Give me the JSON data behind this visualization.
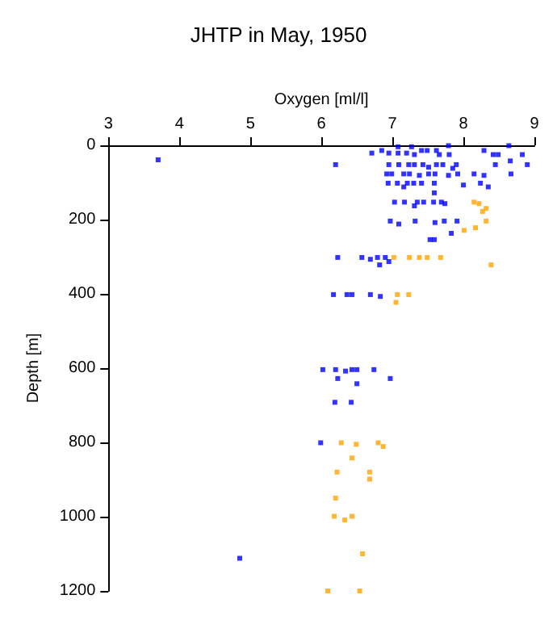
{
  "chart_data": {
    "type": "scatter",
    "title": "JHTP in May, 1950",
    "xlabel": "Oxygen [ml/l]",
    "ylabel": "Depth [m]",
    "xlim": [
      3,
      9
    ],
    "xticks": [
      3,
      4,
      5,
      6,
      7,
      8,
      9
    ],
    "ylim": [
      1200,
      0
    ],
    "yticks": [
      0,
      200,
      400,
      600,
      800,
      1000,
      1200
    ],
    "grid": false,
    "marker": "square",
    "series": [
      {
        "color": "#0000ff",
        "x": [
          3.7,
          6.71,
          6.85,
          6.95,
          7.08,
          7.08,
          7.2,
          7.27,
          7.31,
          7.41,
          7.49,
          7.62,
          7.66,
          7.79,
          7.8,
          8.29,
          8.42,
          8.49,
          8.64,
          8.83,
          6.2,
          6.95,
          7.09,
          7.23,
          7.31,
          7.43,
          7.51,
          7.62,
          7.71,
          7.85,
          7.9,
          8.45,
          8.66,
          8.9,
          6.92,
          6.99,
          7.16,
          7.24,
          7.38,
          7.51,
          7.6,
          7.79,
          7.92,
          8.15,
          8.29,
          8.67,
          6.94,
          7.07,
          7.16,
          7.21,
          7.3,
          7.41,
          7.59,
          8.0,
          8.24,
          8.35,
          7.59,
          7.03,
          7.17,
          7.31,
          7.35,
          7.44,
          7.58,
          7.69,
          7.74,
          6.97,
          7.09,
          7.32,
          7.6,
          7.73,
          7.91,
          7.83,
          7.53,
          7.59,
          6.23,
          6.57,
          6.69,
          6.79,
          6.9,
          6.82,
          6.95,
          6.17,
          6.36,
          6.43,
          6.69,
          6.83,
          6.02,
          6.2,
          6.34,
          6.43,
          6.5,
          6.74,
          6.23,
          6.97,
          6.5,
          6.19,
          6.42,
          5.99,
          4.85
        ],
        "values": [
          39,
          21,
          14,
          21,
          4,
          21,
          21,
          4,
          25,
          14,
          14,
          14,
          25,
          1,
          25,
          14,
          25,
          25,
          1,
          25,
          52,
          52,
          52,
          52,
          52,
          52,
          59,
          52,
          52,
          62,
          52,
          52,
          42,
          52,
          77,
          77,
          77,
          77,
          81,
          77,
          77,
          81,
          77,
          77,
          81,
          77,
          102,
          102,
          112,
          102,
          102,
          102,
          102,
          107,
          102,
          112,
          128,
          153,
          153,
          163,
          153,
          153,
          153,
          153,
          157,
          204,
          212,
          204,
          208,
          204,
          204,
          237,
          254,
          254,
          302,
          302,
          307,
          302,
          302,
          322,
          313,
          402,
          402,
          402,
          402,
          407,
          604,
          604,
          608,
          604,
          604,
          604,
          628,
          628,
          642,
          692,
          692,
          801,
          1112
        ]
      },
      {
        "color": "#ffa500",
        "x": [
          7.02,
          7.24,
          7.38,
          7.49,
          7.68,
          8.39,
          8.15,
          8.22,
          8.32,
          8.27,
          8.32,
          8.01,
          8.17,
          7.07,
          7.23,
          7.05,
          6.28,
          6.49,
          6.8,
          6.87,
          6.43,
          6.22,
          6.68,
          6.68,
          6.2,
          6.18,
          6.33,
          6.43,
          6.58,
          6.09,
          6.54
        ],
        "values": [
          302,
          302,
          302,
          302,
          302,
          322,
          153,
          157,
          170,
          178,
          204,
          229,
          222,
          402,
          402,
          423,
          801,
          805,
          801,
          811,
          842,
          880,
          880,
          899,
          950,
          999,
          1009,
          999,
          1100,
          1200,
          1200
        ]
      }
    ]
  }
}
